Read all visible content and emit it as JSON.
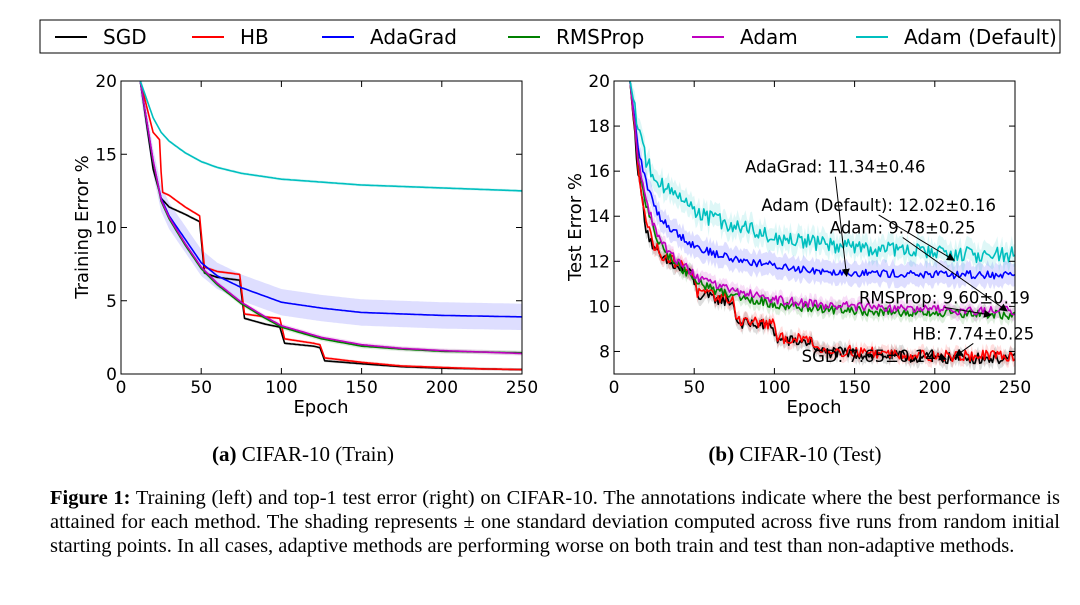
{
  "legend": [
    {
      "name": "SGD",
      "color": "#000000"
    },
    {
      "name": "HB",
      "color": "#ff0000"
    },
    {
      "name": "AdaGrad",
      "color": "#0000ff"
    },
    {
      "name": "RMSProp",
      "color": "#008000"
    },
    {
      "name": "Adam",
      "color": "#bf00bf"
    },
    {
      "name": "Adam (Default)",
      "color": "#00bfbf"
    }
  ],
  "subcaptions": {
    "a_label": "(a)",
    "a_text": "CIFAR-10 (Train)",
    "b_label": "(b)",
    "b_text": "CIFAR-10 (Test)"
  },
  "caption": {
    "label": "Figure 1:",
    "text": "Training (left) and top-1 test error (right) on CIFAR-10. The annotations indicate where the best performance is attained for each method. The shading represents ± one standard deviation computed across five runs from random initial starting points. In all cases, adaptive methods are performing worse on both train and test than non-adaptive methods."
  },
  "chart_data": [
    {
      "type": "line",
      "xlabel": "Epoch",
      "ylabel": "Training Error %",
      "xlim": [
        0,
        250
      ],
      "ylim": [
        0,
        20
      ],
      "xticks": [
        0,
        50,
        100,
        150,
        200,
        250
      ],
      "yticks": [
        0,
        5,
        10,
        15,
        20
      ],
      "shaded_std": true,
      "series": [
        {
          "name": "SGD",
          "color": "#000000",
          "x": [
            12,
            20,
            25,
            30,
            40,
            49,
            52,
            60,
            74,
            77,
            90,
            99,
            102,
            120,
            124,
            127,
            150,
            175,
            200,
            225,
            250
          ],
          "y": [
            20,
            14,
            12,
            11.4,
            10.9,
            10.4,
            6.9,
            6.6,
            6.4,
            3.8,
            3.4,
            3.2,
            2.1,
            1.9,
            1.8,
            0.9,
            0.7,
            0.5,
            0.4,
            0.35,
            0.3
          ],
          "band": 0.1
        },
        {
          "name": "HB",
          "color": "#ff0000",
          "x": [
            12,
            20,
            24,
            25,
            26,
            30,
            40,
            49,
            52,
            60,
            74,
            77,
            90,
            99,
            102,
            120,
            124,
            127,
            150,
            175,
            200,
            225,
            250
          ],
          "y": [
            20,
            16.5,
            16,
            13.8,
            12.4,
            12.2,
            11.4,
            10.8,
            7.3,
            7.0,
            6.8,
            4.1,
            3.9,
            3.8,
            2.4,
            2.1,
            2.0,
            1.1,
            0.8,
            0.55,
            0.45,
            0.35,
            0.3
          ],
          "band": 0.1
        },
        {
          "name": "AdaGrad",
          "color": "#0000ff",
          "x": [
            12,
            20,
            25,
            30,
            40,
            50,
            60,
            75,
            90,
            100,
            125,
            150,
            175,
            200,
            225,
            250
          ],
          "y": [
            20,
            14.5,
            12,
            10.8,
            9.2,
            7.6,
            6.7,
            5.9,
            5.3,
            4.9,
            4.5,
            4.2,
            4.1,
            4.0,
            3.95,
            3.9
          ],
          "band": 0.9
        },
        {
          "name": "RMSProp",
          "color": "#008000",
          "x": [
            12,
            20,
            25,
            30,
            40,
            50,
            60,
            75,
            90,
            100,
            125,
            150,
            175,
            200,
            225,
            250
          ],
          "y": [
            20,
            14.5,
            11.8,
            10.6,
            8.8,
            7.2,
            6.1,
            4.8,
            3.8,
            3.2,
            2.4,
            1.9,
            1.7,
            1.55,
            1.5,
            1.45
          ],
          "band": 0.15
        },
        {
          "name": "Adam",
          "color": "#bf00bf",
          "x": [
            12,
            20,
            25,
            30,
            40,
            50,
            60,
            75,
            90,
            100,
            125,
            150,
            175,
            200,
            225,
            250
          ],
          "y": [
            20,
            14.6,
            11.9,
            10.7,
            8.9,
            7.3,
            6.2,
            4.9,
            3.9,
            3.3,
            2.5,
            2.0,
            1.75,
            1.6,
            1.5,
            1.4
          ],
          "band": 0.15
        },
        {
          "name": "Adam (Default)",
          "color": "#00bfbf",
          "x": [
            12,
            20,
            25,
            30,
            40,
            50,
            60,
            75,
            100,
            125,
            150,
            175,
            200,
            225,
            250
          ],
          "y": [
            20,
            17.5,
            16.5,
            15.9,
            15.1,
            14.5,
            14.1,
            13.7,
            13.3,
            13.1,
            12.9,
            12.8,
            12.7,
            12.6,
            12.5
          ],
          "band": 0.1
        }
      ]
    },
    {
      "type": "line",
      "xlabel": "Epoch",
      "ylabel": "Test Error %",
      "xlim": [
        0,
        250
      ],
      "ylim": [
        7,
        20
      ],
      "xticks": [
        0,
        50,
        100,
        150,
        200,
        250
      ],
      "yticks": [
        8,
        10,
        12,
        14,
        16,
        18,
        20
      ],
      "shaded_std": true,
      "series": [
        {
          "name": "SGD",
          "color": "#000000",
          "x": [
            10,
            15,
            20,
            25,
            30,
            40,
            49,
            52,
            74,
            77,
            99,
            102,
            124,
            127,
            150,
            175,
            200,
            225,
            250
          ],
          "y": [
            20,
            16,
            13.5,
            12.5,
            12.1,
            11.7,
            11.4,
            10.5,
            10.2,
            9.3,
            9.1,
            8.5,
            8.4,
            8.0,
            7.9,
            7.8,
            7.7,
            7.7,
            7.7
          ],
          "noise": 0.25,
          "band": 0.3
        },
        {
          "name": "HB",
          "color": "#ff0000",
          "x": [
            10,
            15,
            20,
            25,
            30,
            40,
            49,
            52,
            74,
            77,
            99,
            102,
            124,
            127,
            150,
            175,
            200,
            225,
            250
          ],
          "y": [
            20,
            16.2,
            13.8,
            12.7,
            12.3,
            11.9,
            11.5,
            10.6,
            10.3,
            9.4,
            9.2,
            8.6,
            8.5,
            8.1,
            8.0,
            7.9,
            7.8,
            7.8,
            7.8
          ],
          "noise": 0.25,
          "band": 0.3
        },
        {
          "name": "AdaGrad",
          "color": "#0000ff",
          "x": [
            10,
            15,
            20,
            25,
            30,
            40,
            50,
            60,
            75,
            100,
            125,
            150,
            175,
            200,
            225,
            250
          ],
          "y": [
            20,
            17,
            15.5,
            14.5,
            13.8,
            13.2,
            12.7,
            12.4,
            12.1,
            11.8,
            11.6,
            11.5,
            11.45,
            11.4,
            11.4,
            11.4
          ],
          "noise": 0.18,
          "band": 0.5
        },
        {
          "name": "RMSProp",
          "color": "#008000",
          "x": [
            10,
            15,
            20,
            25,
            30,
            40,
            50,
            60,
            75,
            100,
            125,
            150,
            175,
            200,
            225,
            250
          ],
          "y": [
            20,
            16.5,
            14.5,
            13.3,
            12.6,
            11.8,
            11.2,
            10.8,
            10.5,
            10.1,
            9.9,
            9.8,
            9.7,
            9.7,
            9.65,
            9.6
          ],
          "noise": 0.2,
          "band": 0.3
        },
        {
          "name": "Adam",
          "color": "#bf00bf",
          "x": [
            10,
            15,
            20,
            25,
            30,
            40,
            50,
            60,
            75,
            100,
            125,
            150,
            175,
            200,
            225,
            250
          ],
          "y": [
            20,
            16.6,
            14.7,
            13.5,
            12.8,
            12.0,
            11.4,
            11.0,
            10.7,
            10.3,
            10.1,
            10.0,
            9.9,
            9.85,
            9.8,
            9.8
          ],
          "noise": 0.2,
          "band": 0.3
        },
        {
          "name": "Adam (Default)",
          "color": "#00bfbf",
          "x": [
            10,
            15,
            20,
            25,
            30,
            40,
            50,
            60,
            75,
            100,
            125,
            150,
            175,
            200,
            225,
            250
          ],
          "y": [
            20,
            18,
            16.5,
            15.8,
            15.4,
            14.8,
            14.3,
            13.9,
            13.6,
            13.1,
            12.8,
            12.6,
            12.5,
            12.4,
            12.3,
            12.3
          ],
          "noise": 0.35,
          "band": 0.5
        }
      ],
      "annotations": [
        {
          "text": "AdaGrad: 11.34±0.46",
          "text_pos": [
            138,
            16.2
          ],
          "align": "middle",
          "arrow_to": [
            145,
            11.35
          ]
        },
        {
          "text": "Adam (Default): 12.02±0.16",
          "text_pos": [
            165,
            14.5
          ],
          "align": "middle",
          "arrow_to": [
            212,
            12.05
          ]
        },
        {
          "text": "Adam: 9.78±0.25",
          "text_pos": [
            180,
            13.5
          ],
          "align": "middle",
          "arrow_to": [
            245,
            9.8
          ]
        },
        {
          "text": "RMSProp: 9.60±0.19",
          "text_pos": [
            206,
            10.4
          ],
          "align": "middle",
          "arrow_to": [
            235,
            9.62
          ]
        },
        {
          "text": "HB: 7.74±0.25",
          "text_pos": [
            224,
            8.8
          ],
          "align": "middle",
          "arrow_to": [
            213,
            7.8
          ]
        },
        {
          "text": "SGD: 7.65±0.14",
          "text_pos": [
            117,
            7.8
          ],
          "align": "end",
          "arrow_to": [
            207,
            7.66
          ]
        }
      ]
    }
  ]
}
